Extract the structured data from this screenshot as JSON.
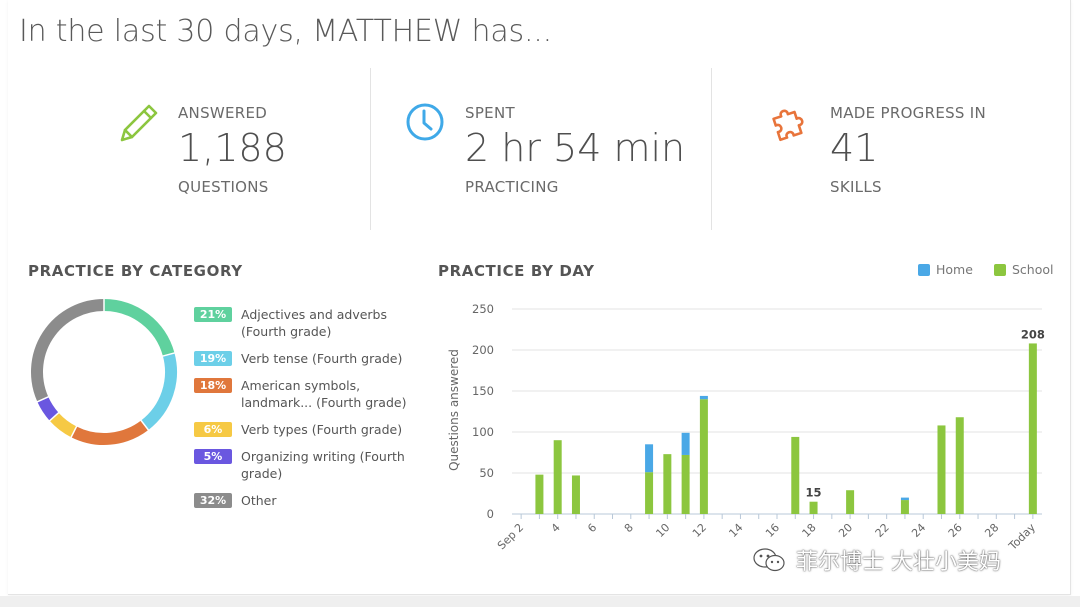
{
  "header": {
    "title": "In the last 30 days, MATTHEW has..."
  },
  "stats": [
    {
      "label": "ANSWERED",
      "value": "1,188",
      "sublabel": "QUESTIONS",
      "icon": "pencil-icon",
      "color": "#8cc63f"
    },
    {
      "label": "SPENT",
      "value": "2 hr 54 min",
      "sublabel": "PRACTICING",
      "icon": "clock-icon",
      "color": "#3fa9e8"
    },
    {
      "label": "MADE PROGRESS IN",
      "value": "41",
      "sublabel": "SKILLS",
      "icon": "puzzle-icon",
      "color": "#e8743b"
    }
  ],
  "category": {
    "title": "PRACTICE BY CATEGORY",
    "items": [
      {
        "pct": "21%",
        "value": 21,
        "label": "Adjectives and adverbs (Fourth grade)",
        "color": "#5fd19e"
      },
      {
        "pct": "19%",
        "value": 19,
        "label": "Verb tense (Fourth grade)",
        "color": "#6ccfe8"
      },
      {
        "pct": "18%",
        "value": 18,
        "label": "American symbols, landmark... (Fourth grade)",
        "color": "#e0773c"
      },
      {
        "pct": "6%",
        "value": 6,
        "label": "Verb types (Fourth grade)",
        "color": "#f6c944"
      },
      {
        "pct": "5%",
        "value": 5,
        "label": "Organizing writing (Fourth grade)",
        "color": "#6a57e0"
      },
      {
        "pct": "32%",
        "value": 32,
        "label": "Other",
        "color": "#8c8c8c"
      }
    ]
  },
  "practice_by_day": {
    "title": "PRACTICE BY DAY",
    "legend": {
      "home": "Home",
      "school": "School",
      "home_color": "#4aa8e6",
      "school_color": "#8cc63f"
    }
  },
  "watermark": {
    "text": "菲尔博士 大壮小美妈"
  },
  "chart_data": [
    {
      "type": "pie",
      "title": "PRACTICE BY CATEGORY",
      "categories": [
        "Adjectives and adverbs (Fourth grade)",
        "Verb tense (Fourth grade)",
        "American symbols, landmark... (Fourth grade)",
        "Verb types (Fourth grade)",
        "Organizing writing (Fourth grade)",
        "Other"
      ],
      "values": [
        21,
        19,
        18,
        6,
        5,
        32
      ]
    },
    {
      "type": "bar",
      "title": "PRACTICE BY DAY",
      "ylabel": "Questions answered",
      "ylim": [
        0,
        250
      ],
      "yticks": [
        0,
        50,
        100,
        150,
        200,
        250
      ],
      "categories": [
        "Sep 2",
        "3",
        "4",
        "5",
        "6",
        "7",
        "8",
        "9",
        "10",
        "11",
        "12",
        "13",
        "14",
        "15",
        "16",
        "17",
        "18",
        "19",
        "20",
        "21",
        "22",
        "23",
        "24",
        "25",
        "26",
        "27",
        "28",
        "29",
        "Today"
      ],
      "tick_labels": {
        "Sep 2": "Sep 2",
        "4": "4",
        "6": "6",
        "8": "8",
        "10": "10",
        "12": "12",
        "14": "14",
        "16": "16",
        "18": "18",
        "20": "20",
        "22": "22",
        "24": "24",
        "26": "26",
        "28": "28",
        "Today": "Today"
      },
      "series": [
        {
          "name": "School",
          "values": [
            0,
            48,
            90,
            47,
            0,
            0,
            0,
            51,
            73,
            72,
            140,
            0,
            0,
            0,
            0,
            94,
            15,
            0,
            29,
            0,
            0,
            17,
            0,
            108,
            118,
            0,
            0,
            0,
            208
          ]
        },
        {
          "name": "Home",
          "values": [
            0,
            0,
            0,
            0,
            0,
            0,
            0,
            34,
            0,
            27,
            4,
            0,
            0,
            0,
            0,
            0,
            0,
            0,
            0,
            0,
            0,
            3,
            0,
            0,
            0,
            0,
            0,
            0,
            0
          ]
        }
      ],
      "data_labels": [
        {
          "category": "18",
          "label": "15"
        },
        {
          "category": "Today",
          "label": "208"
        }
      ],
      "stacked": true,
      "grid": true,
      "legend_position": "top-right"
    }
  ]
}
